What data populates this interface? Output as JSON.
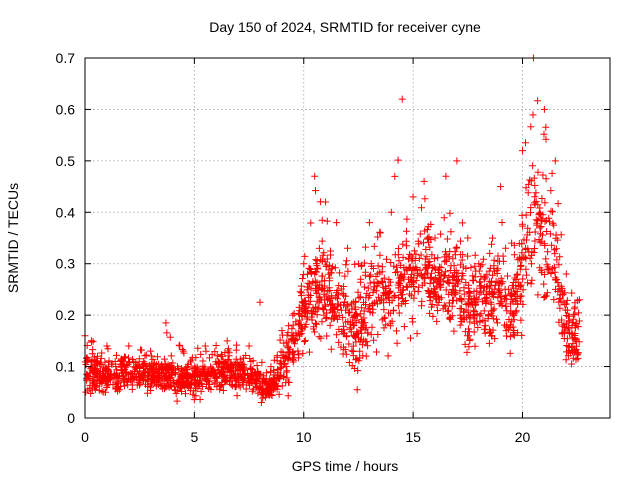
{
  "chart_data": {
    "type": "scatter",
    "title": "Day 150 of 2024, SRMTID for receiver cyne",
    "xlabel": "GPS time / hours",
    "ylabel": "SRMTID / TECUs",
    "xlim": [
      0,
      24
    ],
    "ylim": [
      0,
      0.7
    ],
    "x_ticks": [
      0,
      5,
      10,
      15,
      20
    ],
    "x_tick_labels": [
      "0",
      "5",
      "10",
      "15",
      "20"
    ],
    "y_ticks": [
      0,
      0.1,
      0.2,
      0.3,
      0.4,
      0.5,
      0.6,
      0.7
    ],
    "y_tick_labels": [
      "0",
      "0.1",
      "0.2",
      "0.3",
      "0.4",
      "0.5",
      "0.6",
      "0.7"
    ],
    "grid": true,
    "marker": "+",
    "color": "#ff0000",
    "series": [
      {
        "name": "SRMTID",
        "envelope": [
          {
            "t": 0.0,
            "median": 0.09,
            "spread": 0.035,
            "peak": 0.16
          },
          {
            "t": 1.0,
            "median": 0.08,
            "spread": 0.03,
            "peak": 0.14
          },
          {
            "t": 2.0,
            "median": 0.09,
            "spread": 0.03,
            "peak": 0.14
          },
          {
            "t": 3.0,
            "median": 0.085,
            "spread": 0.03,
            "peak": 0.13
          },
          {
            "t": 3.7,
            "median": 0.09,
            "spread": 0.03,
            "peak": 0.185
          },
          {
            "t": 4.5,
            "median": 0.07,
            "spread": 0.03,
            "peak": 0.13
          },
          {
            "t": 5.5,
            "median": 0.085,
            "spread": 0.03,
            "peak": 0.14
          },
          {
            "t": 6.5,
            "median": 0.095,
            "spread": 0.035,
            "peak": 0.15
          },
          {
            "t": 7.5,
            "median": 0.08,
            "spread": 0.03,
            "peak": 0.14
          },
          {
            "t": 8.0,
            "median": 0.07,
            "spread": 0.025,
            "peak": 0.225
          },
          {
            "t": 8.5,
            "median": 0.06,
            "spread": 0.02,
            "peak": 0.1
          },
          {
            "t": 9.0,
            "median": 0.1,
            "spread": 0.04,
            "peak": 0.17
          },
          {
            "t": 9.5,
            "median": 0.14,
            "spread": 0.05,
            "peak": 0.2
          },
          {
            "t": 10.0,
            "median": 0.2,
            "spread": 0.06,
            "peak": 0.3
          },
          {
            "t": 10.5,
            "median": 0.25,
            "spread": 0.08,
            "peak": 0.47
          },
          {
            "t": 11.0,
            "median": 0.24,
            "spread": 0.08,
            "peak": 0.42
          },
          {
            "t": 11.5,
            "median": 0.22,
            "spread": 0.07,
            "peak": 0.38
          },
          {
            "t": 12.0,
            "median": 0.2,
            "spread": 0.07,
            "peak": 0.33
          },
          {
            "t": 12.5,
            "median": 0.16,
            "spread": 0.08,
            "peak": 0.3
          },
          {
            "t": 13.0,
            "median": 0.23,
            "spread": 0.08,
            "peak": 0.38
          },
          {
            "t": 13.5,
            "median": 0.25,
            "spread": 0.08,
            "peak": 0.36
          },
          {
            "t": 14.0,
            "median": 0.24,
            "spread": 0.07,
            "peak": 0.4
          },
          {
            "t": 14.5,
            "median": 0.27,
            "spread": 0.08,
            "peak": 0.62
          },
          {
            "t": 15.0,
            "median": 0.28,
            "spread": 0.08,
            "peak": 0.43
          },
          {
            "t": 15.5,
            "median": 0.3,
            "spread": 0.08,
            "peak": 0.46
          },
          {
            "t": 16.0,
            "median": 0.25,
            "spread": 0.06,
            "peak": 0.35
          },
          {
            "t": 16.5,
            "median": 0.28,
            "spread": 0.08,
            "peak": 0.47
          },
          {
            "t": 17.0,
            "median": 0.26,
            "spread": 0.08,
            "peak": 0.5
          },
          {
            "t": 17.5,
            "median": 0.21,
            "spread": 0.07,
            "peak": 0.35
          },
          {
            "t": 18.0,
            "median": 0.24,
            "spread": 0.06,
            "peak": 0.3
          },
          {
            "t": 18.5,
            "median": 0.22,
            "spread": 0.07,
            "peak": 0.32
          },
          {
            "t": 19.0,
            "median": 0.25,
            "spread": 0.08,
            "peak": 0.45
          },
          {
            "t": 19.5,
            "median": 0.2,
            "spread": 0.07,
            "peak": 0.34
          },
          {
            "t": 20.0,
            "median": 0.3,
            "spread": 0.1,
            "peak": 0.52
          },
          {
            "t": 20.5,
            "median": 0.38,
            "spread": 0.12,
            "peak": 0.7
          },
          {
            "t": 21.0,
            "median": 0.35,
            "spread": 0.11,
            "peak": 0.6
          },
          {
            "t": 21.5,
            "median": 0.3,
            "spread": 0.1,
            "peak": 0.5
          },
          {
            "t": 22.0,
            "median": 0.17,
            "spread": 0.06,
            "peak": 0.28
          },
          {
            "t": 22.6,
            "median": 0.15,
            "spread": 0.05,
            "peak": 0.23
          }
        ],
        "points_per_hour": 150
      }
    ]
  }
}
